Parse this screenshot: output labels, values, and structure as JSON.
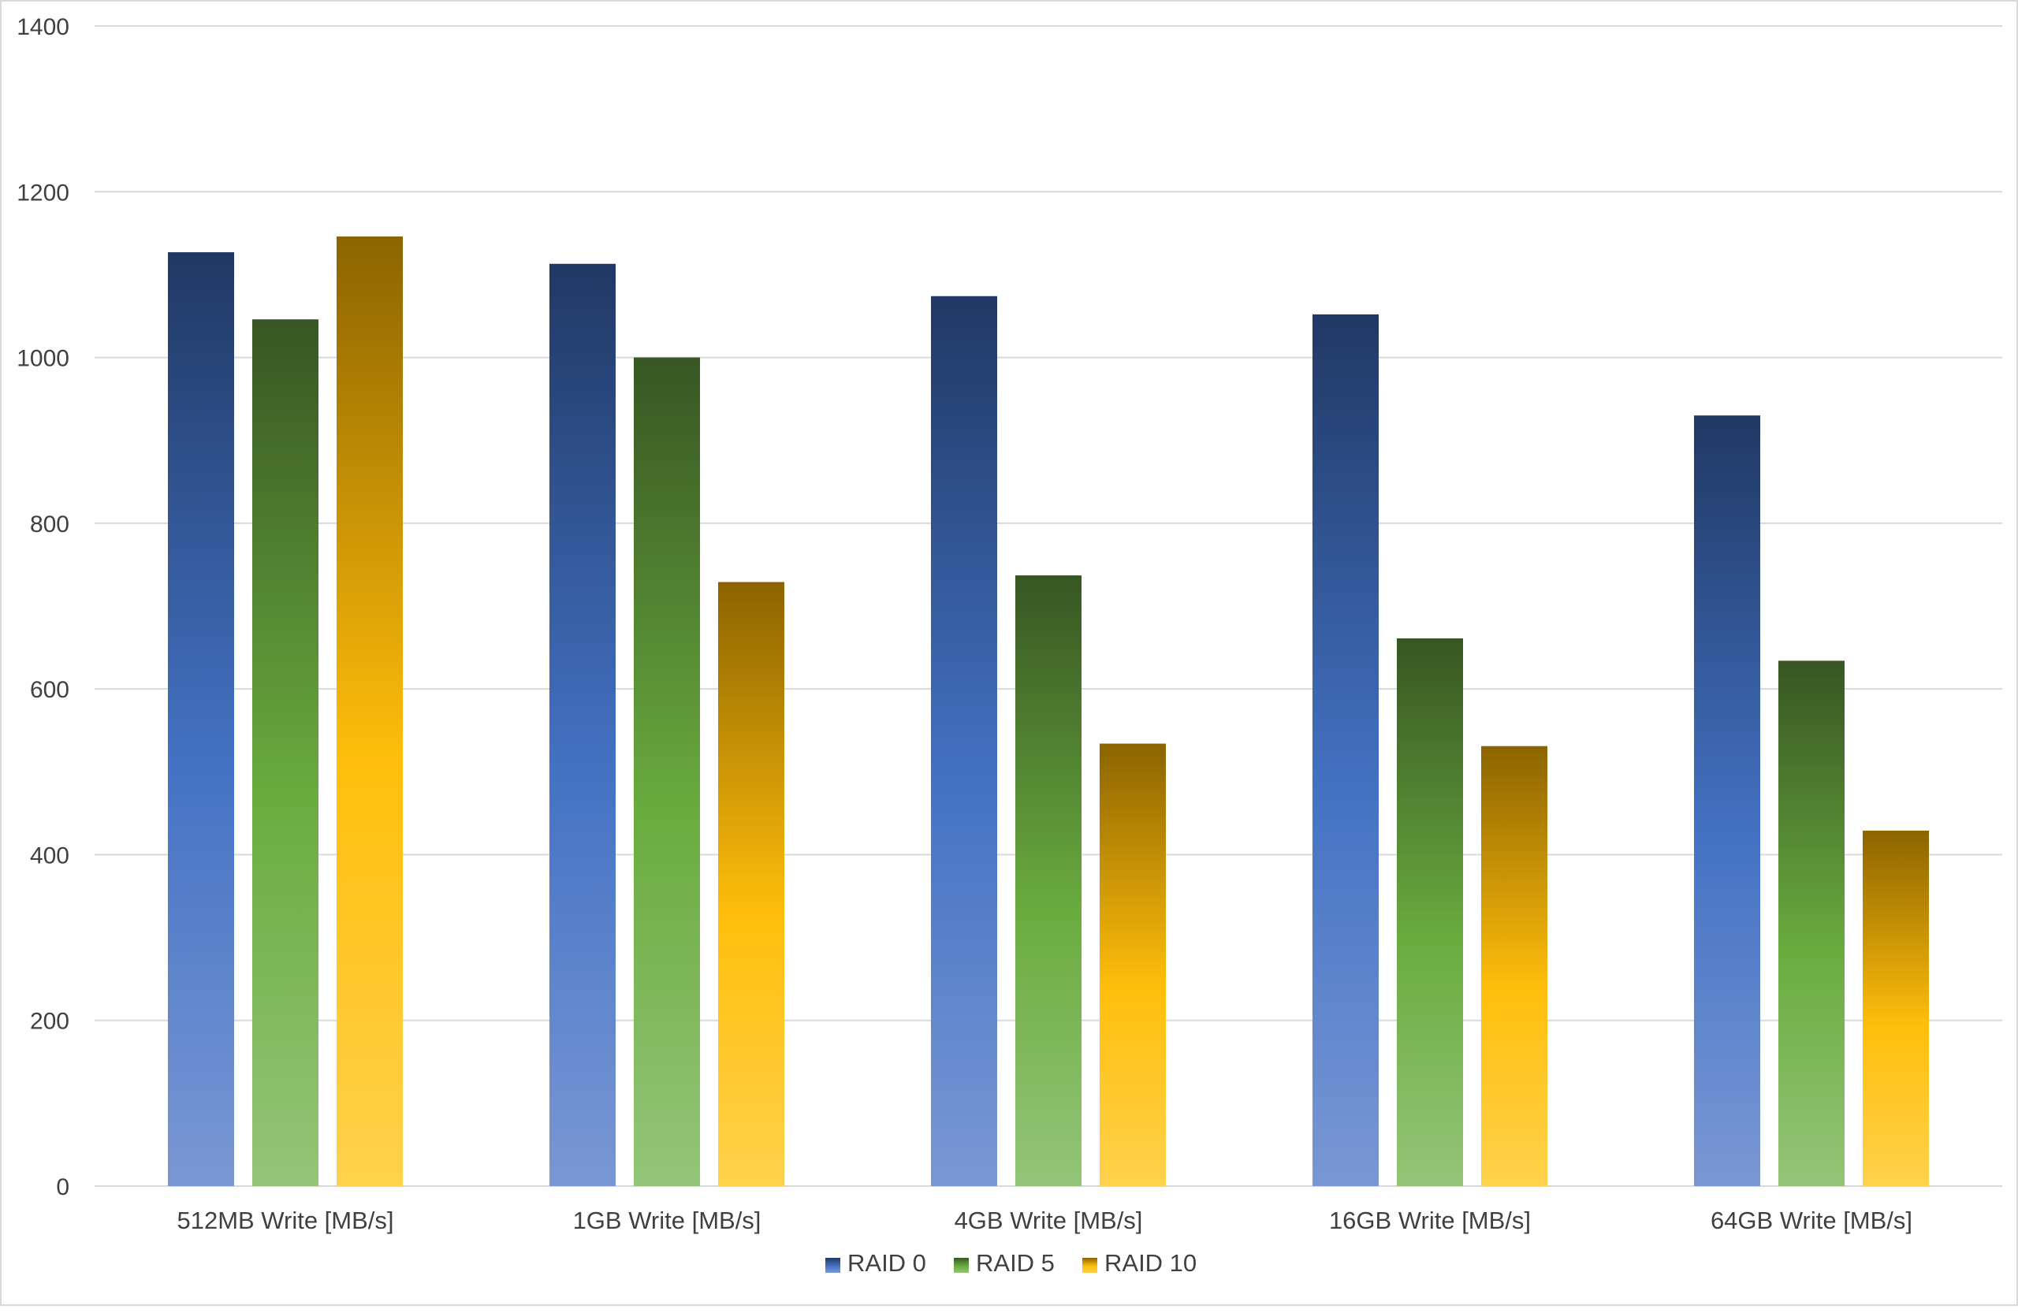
{
  "chart_data": {
    "type": "bar",
    "categories": [
      "512MB Write [MB/s]",
      "1GB Write [MB/s]",
      "4GB Write [MB/s]",
      "16GB Write [MB/s]",
      "64GB Write [MB/s]"
    ],
    "series": [
      {
        "name": "RAID 0",
        "values": [
          1127,
          1113,
          1074,
          1052,
          930
        ],
        "colors": {
          "top": "#203864",
          "mid": "#4472C4",
          "bottom": "#7A97D4"
        }
      },
      {
        "name": "RAID 5",
        "values": [
          1046,
          1000,
          737,
          661,
          634
        ],
        "colors": {
          "top": "#375623",
          "mid": "#6AAB3E",
          "bottom": "#95C579"
        }
      },
      {
        "name": "RAID 10",
        "values": [
          1146,
          729,
          534,
          531,
          429
        ],
        "colors": {
          "top": "#8C6400",
          "mid": "#FFBE0B",
          "bottom": "#FFD24C"
        }
      }
    ],
    "ylim": [
      0,
      1400
    ],
    "yticks": [
      0,
      200,
      400,
      600,
      800,
      1000,
      1200,
      1400
    ],
    "grid": true,
    "legend": "bottom-center",
    "gridline_color": "#D9D9D9"
  }
}
